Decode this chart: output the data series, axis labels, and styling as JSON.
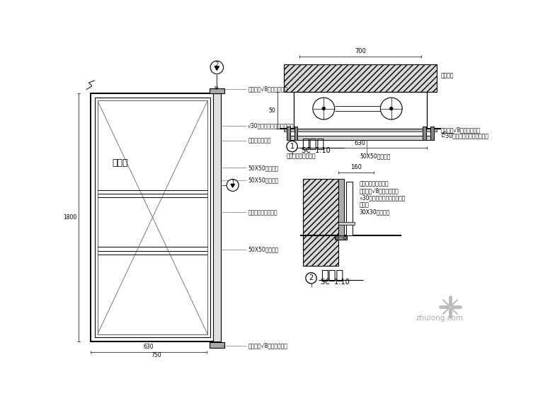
{
  "bg_color": "#ffffff",
  "line_color": "#000000",
  "notes_left_view": [
    "万向机座√8膨胀螺栓固定",
    "√30钢杆二下与万向轴连结卡",
    "红色有机玻璃字",
    "50X50镀锌角钢",
    "50X50边线角条",
    "与所在位置饰材一致",
    "50X50板笼内网",
    "万向轴承√8膨胀螺栓固定"
  ],
  "label_xihuo": "消火栓",
  "dim_630": "630",
  "dim_750": "750",
  "dim_1800": "1800",
  "sec1_title": "剖面图",
  "sec1_scale": "SC  1:10",
  "sec1_dim700": "700",
  "sec1_dim630": "630",
  "sec1_dim50": "50",
  "sec1_note_left": "与所在位置饰材一致",
  "sec1_note_right_angle": "50X50镀锌角钢",
  "sec1_note_box": "消火栓箱",
  "sec1_note_anchor": "万向端承√8膨胀螺栓固定",
  "sec1_note_rod": "∟30钢杆上下与万向端承连接",
  "sec2_title": "剖面图",
  "sec2_scale": "SC  1:10",
  "sec2_dim160": "160",
  "sec2_note1": "与所在位置饰材一致",
  "sec2_note2": "万方端承√8膨胀螺栓固定",
  "sec2_note3": "∘30钢杆上下与万向端承连接",
  "sec2_note4": "消音箱",
  "sec2_note5": "30X30镀锌角钢",
  "watermark": "zhulong.com"
}
